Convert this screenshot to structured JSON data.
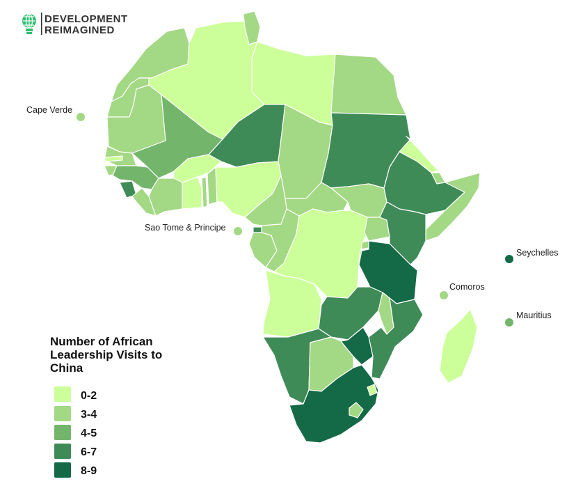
{
  "logo": {
    "line1": "DEVELOPMENT",
    "line2": "REIMAGINED",
    "icon": "lightbulb-globe-icon",
    "icon_color": "#2fbf71"
  },
  "legend": {
    "title_lines": [
      "Number of African",
      "Leadership Visits to",
      "China"
    ],
    "items": [
      {
        "label": "0-2",
        "color": "#ccff99"
      },
      {
        "label": "3-4",
        "color": "#a3d884"
      },
      {
        "label": "4-5",
        "color": "#74b56c"
      },
      {
        "label": "6-7",
        "color": "#3f8b58"
      },
      {
        "label": "8-9",
        "color": "#146946"
      }
    ]
  },
  "islands": [
    {
      "name": "Cape Verde",
      "label": "Cape Verde",
      "bin": 1
    },
    {
      "name": "Sao Tome & Principe",
      "label": "Sao Tome & Principe",
      "bin": 1
    },
    {
      "name": "Seychelles",
      "label": "Seychelles",
      "bin": 4
    },
    {
      "name": "Comoros",
      "label": "Comoros",
      "bin": 1
    },
    {
      "name": "Mauritius",
      "label": "Mauritius",
      "bin": 2
    }
  ],
  "countries": [
    {
      "name": "Morocco",
      "bin": 1
    },
    {
      "name": "Western Sahara",
      "bin": 1
    },
    {
      "name": "Algeria",
      "bin": 0
    },
    {
      "name": "Tunisia",
      "bin": 1
    },
    {
      "name": "Libya",
      "bin": 0
    },
    {
      "name": "Egypt",
      "bin": 1
    },
    {
      "name": "Mauritania",
      "bin": 1
    },
    {
      "name": "Mali",
      "bin": 2
    },
    {
      "name": "Niger",
      "bin": 3
    },
    {
      "name": "Chad",
      "bin": 1
    },
    {
      "name": "Sudan",
      "bin": 3
    },
    {
      "name": "Eritrea",
      "bin": 0
    },
    {
      "name": "Senegal",
      "bin": 1
    },
    {
      "name": "Gambia",
      "bin": 0
    },
    {
      "name": "Guinea-Bissau",
      "bin": 1
    },
    {
      "name": "Guinea",
      "bin": 2
    },
    {
      "name": "Sierra Leone",
      "bin": 3
    },
    {
      "name": "Liberia",
      "bin": 1
    },
    {
      "name": "Cote d'Ivoire",
      "bin": 1
    },
    {
      "name": "Burkina Faso",
      "bin": 0
    },
    {
      "name": "Ghana",
      "bin": 0
    },
    {
      "name": "Togo",
      "bin": 1
    },
    {
      "name": "Benin",
      "bin": 1
    },
    {
      "name": "Nigeria",
      "bin": 0
    },
    {
      "name": "Cameroon",
      "bin": 1
    },
    {
      "name": "Central African Republic",
      "bin": 1
    },
    {
      "name": "South Sudan",
      "bin": 1
    },
    {
      "name": "Ethiopia",
      "bin": 3
    },
    {
      "name": "Djibouti",
      "bin": 1
    },
    {
      "name": "Somalia",
      "bin": 1
    },
    {
      "name": "Equatorial Guinea",
      "bin": 3
    },
    {
      "name": "Gabon",
      "bin": 1
    },
    {
      "name": "Republic of the Congo",
      "bin": 1
    },
    {
      "name": "DR Congo",
      "bin": 0
    },
    {
      "name": "Uganda",
      "bin": 1
    },
    {
      "name": "Kenya",
      "bin": 3
    },
    {
      "name": "Rwanda",
      "bin": 1
    },
    {
      "name": "Burundi",
      "bin": 1
    },
    {
      "name": "Tanzania",
      "bin": 4
    },
    {
      "name": "Angola",
      "bin": 0
    },
    {
      "name": "Zambia",
      "bin": 3
    },
    {
      "name": "Malawi",
      "bin": 1
    },
    {
      "name": "Mozambique",
      "bin": 3
    },
    {
      "name": "Namibia",
      "bin": 3
    },
    {
      "name": "Botswana",
      "bin": 1
    },
    {
      "name": "Zimbabwe",
      "bin": 4
    },
    {
      "name": "South Africa",
      "bin": 4
    },
    {
      "name": "Lesotho",
      "bin": 1
    },
    {
      "name": "Eswatini",
      "bin": 0
    },
    {
      "name": "Madagascar",
      "bin": 0
    }
  ]
}
